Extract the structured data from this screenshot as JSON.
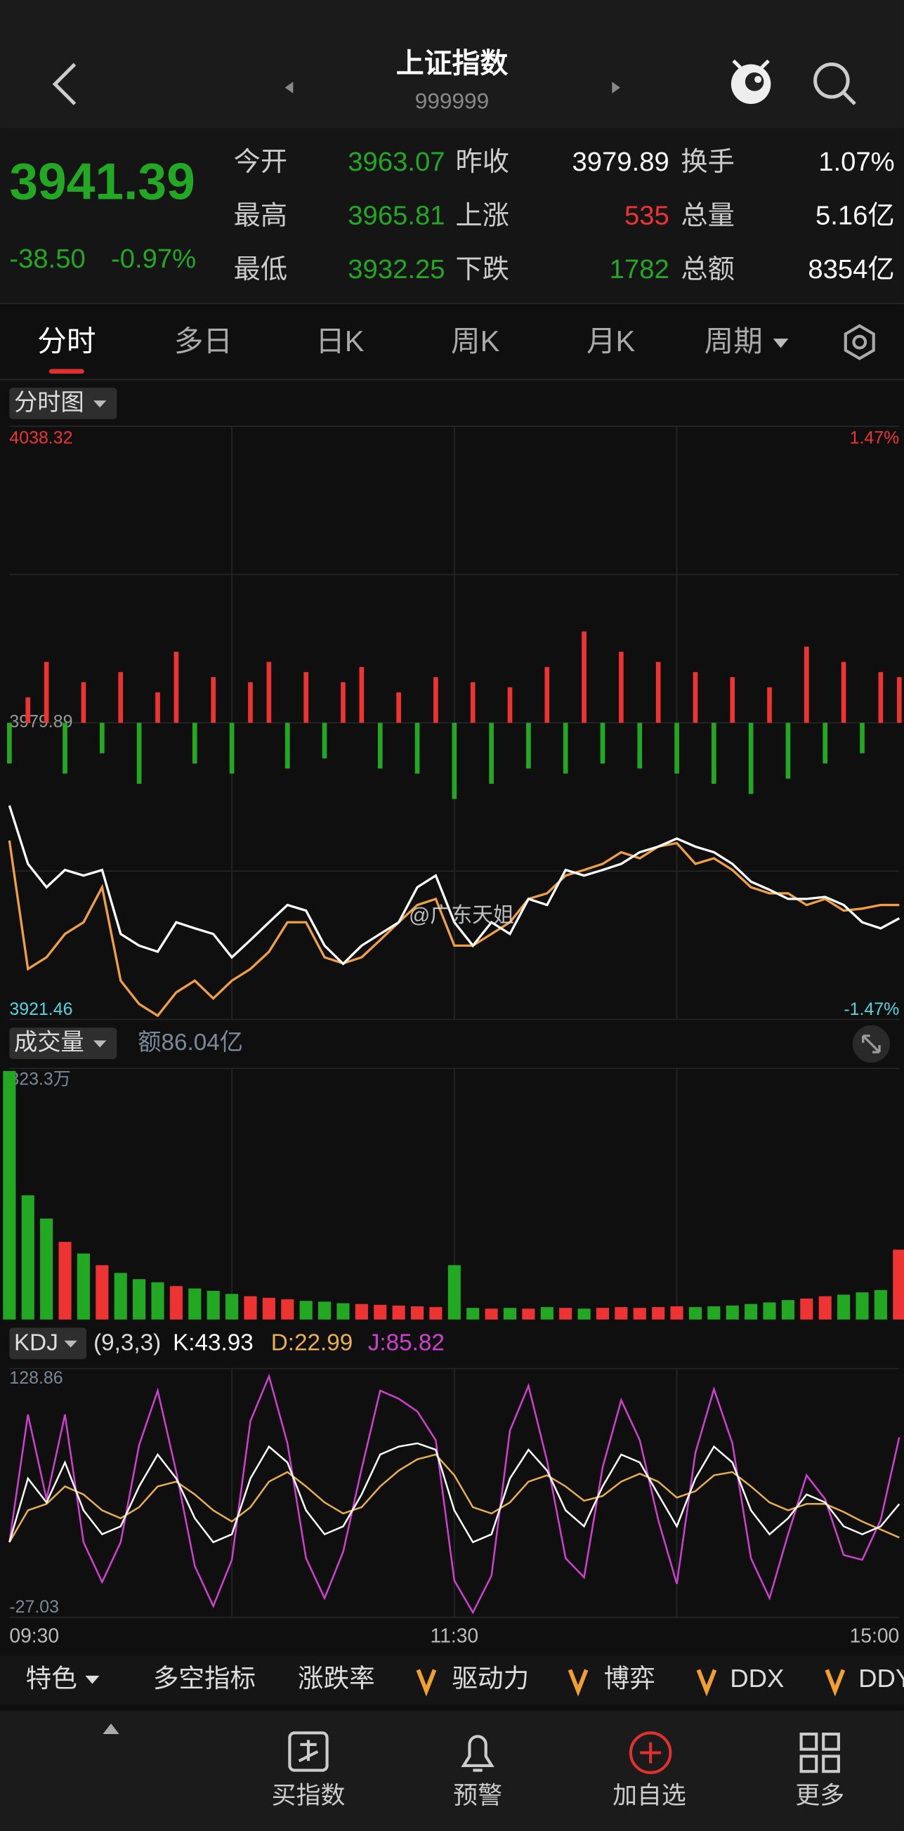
{
  "header": {
    "title": "上证指数",
    "code": "999999"
  },
  "quote": {
    "price": "3941.39",
    "change": "-38.50",
    "change_pct": "-0.97%"
  },
  "stats": [
    [
      "今开",
      "3963.07",
      "昨收",
      "3979.89",
      "换手",
      "1.07%"
    ],
    [
      "最高",
      "3965.81",
      "上涨",
      "535",
      "总量",
      "5.16亿"
    ],
    [
      "最低",
      "3932.25",
      "下跌",
      "1782",
      "总额",
      "8354亿"
    ]
  ],
  "tabs": [
    "分时",
    "多日",
    "日K",
    "周K",
    "月K",
    "周期"
  ],
  "watermark": "@广东天姐",
  "chart_data": [
    {
      "type": "line",
      "title": "分时图",
      "ylim": [
        3921.46,
        4038.32
      ],
      "yticks": [
        3921.46,
        3979.89,
        4038.32
      ],
      "y2lim": [
        -1.47,
        1.47
      ],
      "y2ticks": [
        {
          "value": -1.47,
          "label": "-1.47%"
        },
        {
          "value": 1.47,
          "label": "1.47%"
        }
      ],
      "series": [
        {
          "color": "#ffffff",
          "values": [
            3963.6,
            3952.1,
            3947.5,
            3950.9,
            3949.8,
            3950.9,
            3938.3,
            3936.0,
            3934.8,
            3940.6,
            3939.4,
            3938.3,
            3933.7,
            3937.1,
            3940.6,
            3944.0,
            3942.9,
            3936.0,
            3932.4,
            3936.0,
            3938.3,
            3940.6,
            3947.5,
            3949.8,
            3940.6,
            3936.0,
            3940.6,
            3938.3,
            3945.2,
            3944.0,
            3950.9,
            3949.8,
            3950.9,
            3952.1,
            3954.4,
            3955.5,
            3957.1,
            3955.5,
            3954.4,
            3952.1,
            3948.6,
            3947.0,
            3945.2,
            3945.2,
            3945.6,
            3944.0,
            3940.6,
            3939.4,
            3941.39
          ]
        },
        {
          "color": "#f0a040",
          "values": [
            3956.7,
            3931.4,
            3933.7,
            3938.3,
            3940.6,
            3947.5,
            3929.1,
            3924.5,
            3922.2,
            3926.8,
            3929.1,
            3925.6,
            3929.1,
            3931.4,
            3934.8,
            3940.6,
            3940.6,
            3933.7,
            3932.5,
            3933.7,
            3937.1,
            3940.6,
            3944.0,
            3945.2,
            3936.0,
            3936.0,
            3938.3,
            3940.6,
            3945.2,
            3946.3,
            3949.8,
            3950.9,
            3952.1,
            3954.4,
            3953.2,
            3955.5,
            3956.2,
            3952.1,
            3953.2,
            3950.9,
            3947.5,
            3946.3,
            3946.3,
            3944.0,
            3945.2,
            3942.9,
            3943.3,
            3944.0,
            3944.0
          ]
        }
      ],
      "bars": [
        -8,
        5,
        12,
        -10,
        8,
        -6,
        10,
        -12,
        6,
        14,
        -8,
        9,
        -10,
        8,
        12,
        -9,
        10,
        -7,
        8,
        11,
        -9,
        6,
        -10,
        9,
        -15,
        8,
        -12,
        7,
        -9,
        11,
        -10,
        18,
        -8,
        14,
        -9,
        12,
        -10,
        10,
        -12,
        9,
        -14,
        7,
        -11,
        15,
        -8,
        12,
        -6,
        10,
        9
      ]
    },
    {
      "type": "bar",
      "title": "成交量",
      "subtitle": "额86.04亿",
      "ylim": [
        0,
        3233000
      ],
      "yticks": [
        {
          "value": 3233000,
          "label": "323.3万"
        }
      ],
      "values": [
        3200000,
        1600000,
        1300000,
        1000000,
        850000,
        700000,
        600000,
        520000,
        480000,
        430000,
        400000,
        370000,
        330000,
        300000,
        280000,
        260000,
        240000,
        230000,
        210000,
        200000,
        190000,
        180000,
        170000,
        160000,
        700000,
        150000,
        140000,
        150000,
        140000,
        160000,
        150000,
        140000,
        150000,
        160000,
        150000,
        160000,
        170000,
        160000,
        170000,
        180000,
        200000,
        220000,
        250000,
        270000,
        300000,
        320000,
        350000,
        380000,
        900000
      ]
    },
    {
      "type": "line",
      "title": "KDJ",
      "params": "(9,3,3)",
      "ylim": [
        -27.03,
        128.86
      ],
      "yticks": [
        -27.03,
        128.86
      ],
      "x": [
        "09:30",
        null,
        null,
        null,
        null,
        null,
        null,
        null,
        null,
        null,
        null,
        null,
        null,
        null,
        null,
        null,
        null,
        null,
        null,
        null,
        null,
        null,
        null,
        null,
        "11:30",
        null,
        null,
        null,
        null,
        null,
        null,
        null,
        null,
        null,
        null,
        null,
        null,
        null,
        null,
        null,
        null,
        null,
        null,
        null,
        null,
        null,
        null,
        null,
        "15:00"
      ],
      "series": [
        {
          "name": "K",
          "label": "K:43.93",
          "color": "#ffffff",
          "values": [
            20,
            60,
            45,
            70,
            40,
            25,
            30,
            55,
            75,
            60,
            35,
            20,
            25,
            60,
            80,
            70,
            40,
            25,
            30,
            50,
            75,
            80,
            82,
            78,
            40,
            20,
            25,
            60,
            78,
            65,
            40,
            30,
            55,
            75,
            70,
            50,
            30,
            60,
            80,
            70,
            40,
            25,
            35,
            50,
            45,
            30,
            25,
            30,
            43.93
          ]
        },
        {
          "name": "D",
          "label": "D:22.99",
          "color": "#e8b04a",
          "values": [
            20,
            40,
            44,
            55,
            50,
            40,
            35,
            42,
            55,
            58,
            50,
            40,
            33,
            42,
            58,
            64,
            55,
            45,
            38,
            42,
            55,
            65,
            72,
            75,
            62,
            42,
            38,
            45,
            58,
            62,
            55,
            46,
            49,
            58,
            63,
            58,
            48,
            52,
            62,
            64,
            55,
            45,
            40,
            44,
            44,
            39,
            33,
            28,
            22.99
          ]
        },
        {
          "name": "J",
          "label": "J:85.82",
          "color": "#d040d0",
          "values": [
            20,
            100,
            47,
            100,
            20,
            -5,
            20,
            81,
            115,
            64,
            5,
            -20,
            9,
            96,
            124,
            82,
            10,
            -15,
            14,
            66,
            115,
            110,
            102,
            84,
            -4,
            -24,
            -1,
            90,
            118,
            71,
            10,
            -2,
            67,
            109,
            84,
            34,
            -6,
            76,
            116,
            82,
            10,
            -15,
            25,
            62,
            47,
            12,
            9,
            34,
            85.82
          ]
        }
      ]
    }
  ],
  "indicator_tabs": [
    "特色",
    "多空指标",
    "涨跌率",
    "驱动力",
    "博弈",
    "DDX",
    "DDY"
  ],
  "nav": [
    "买指数",
    "预警",
    "加自选",
    "更多"
  ]
}
